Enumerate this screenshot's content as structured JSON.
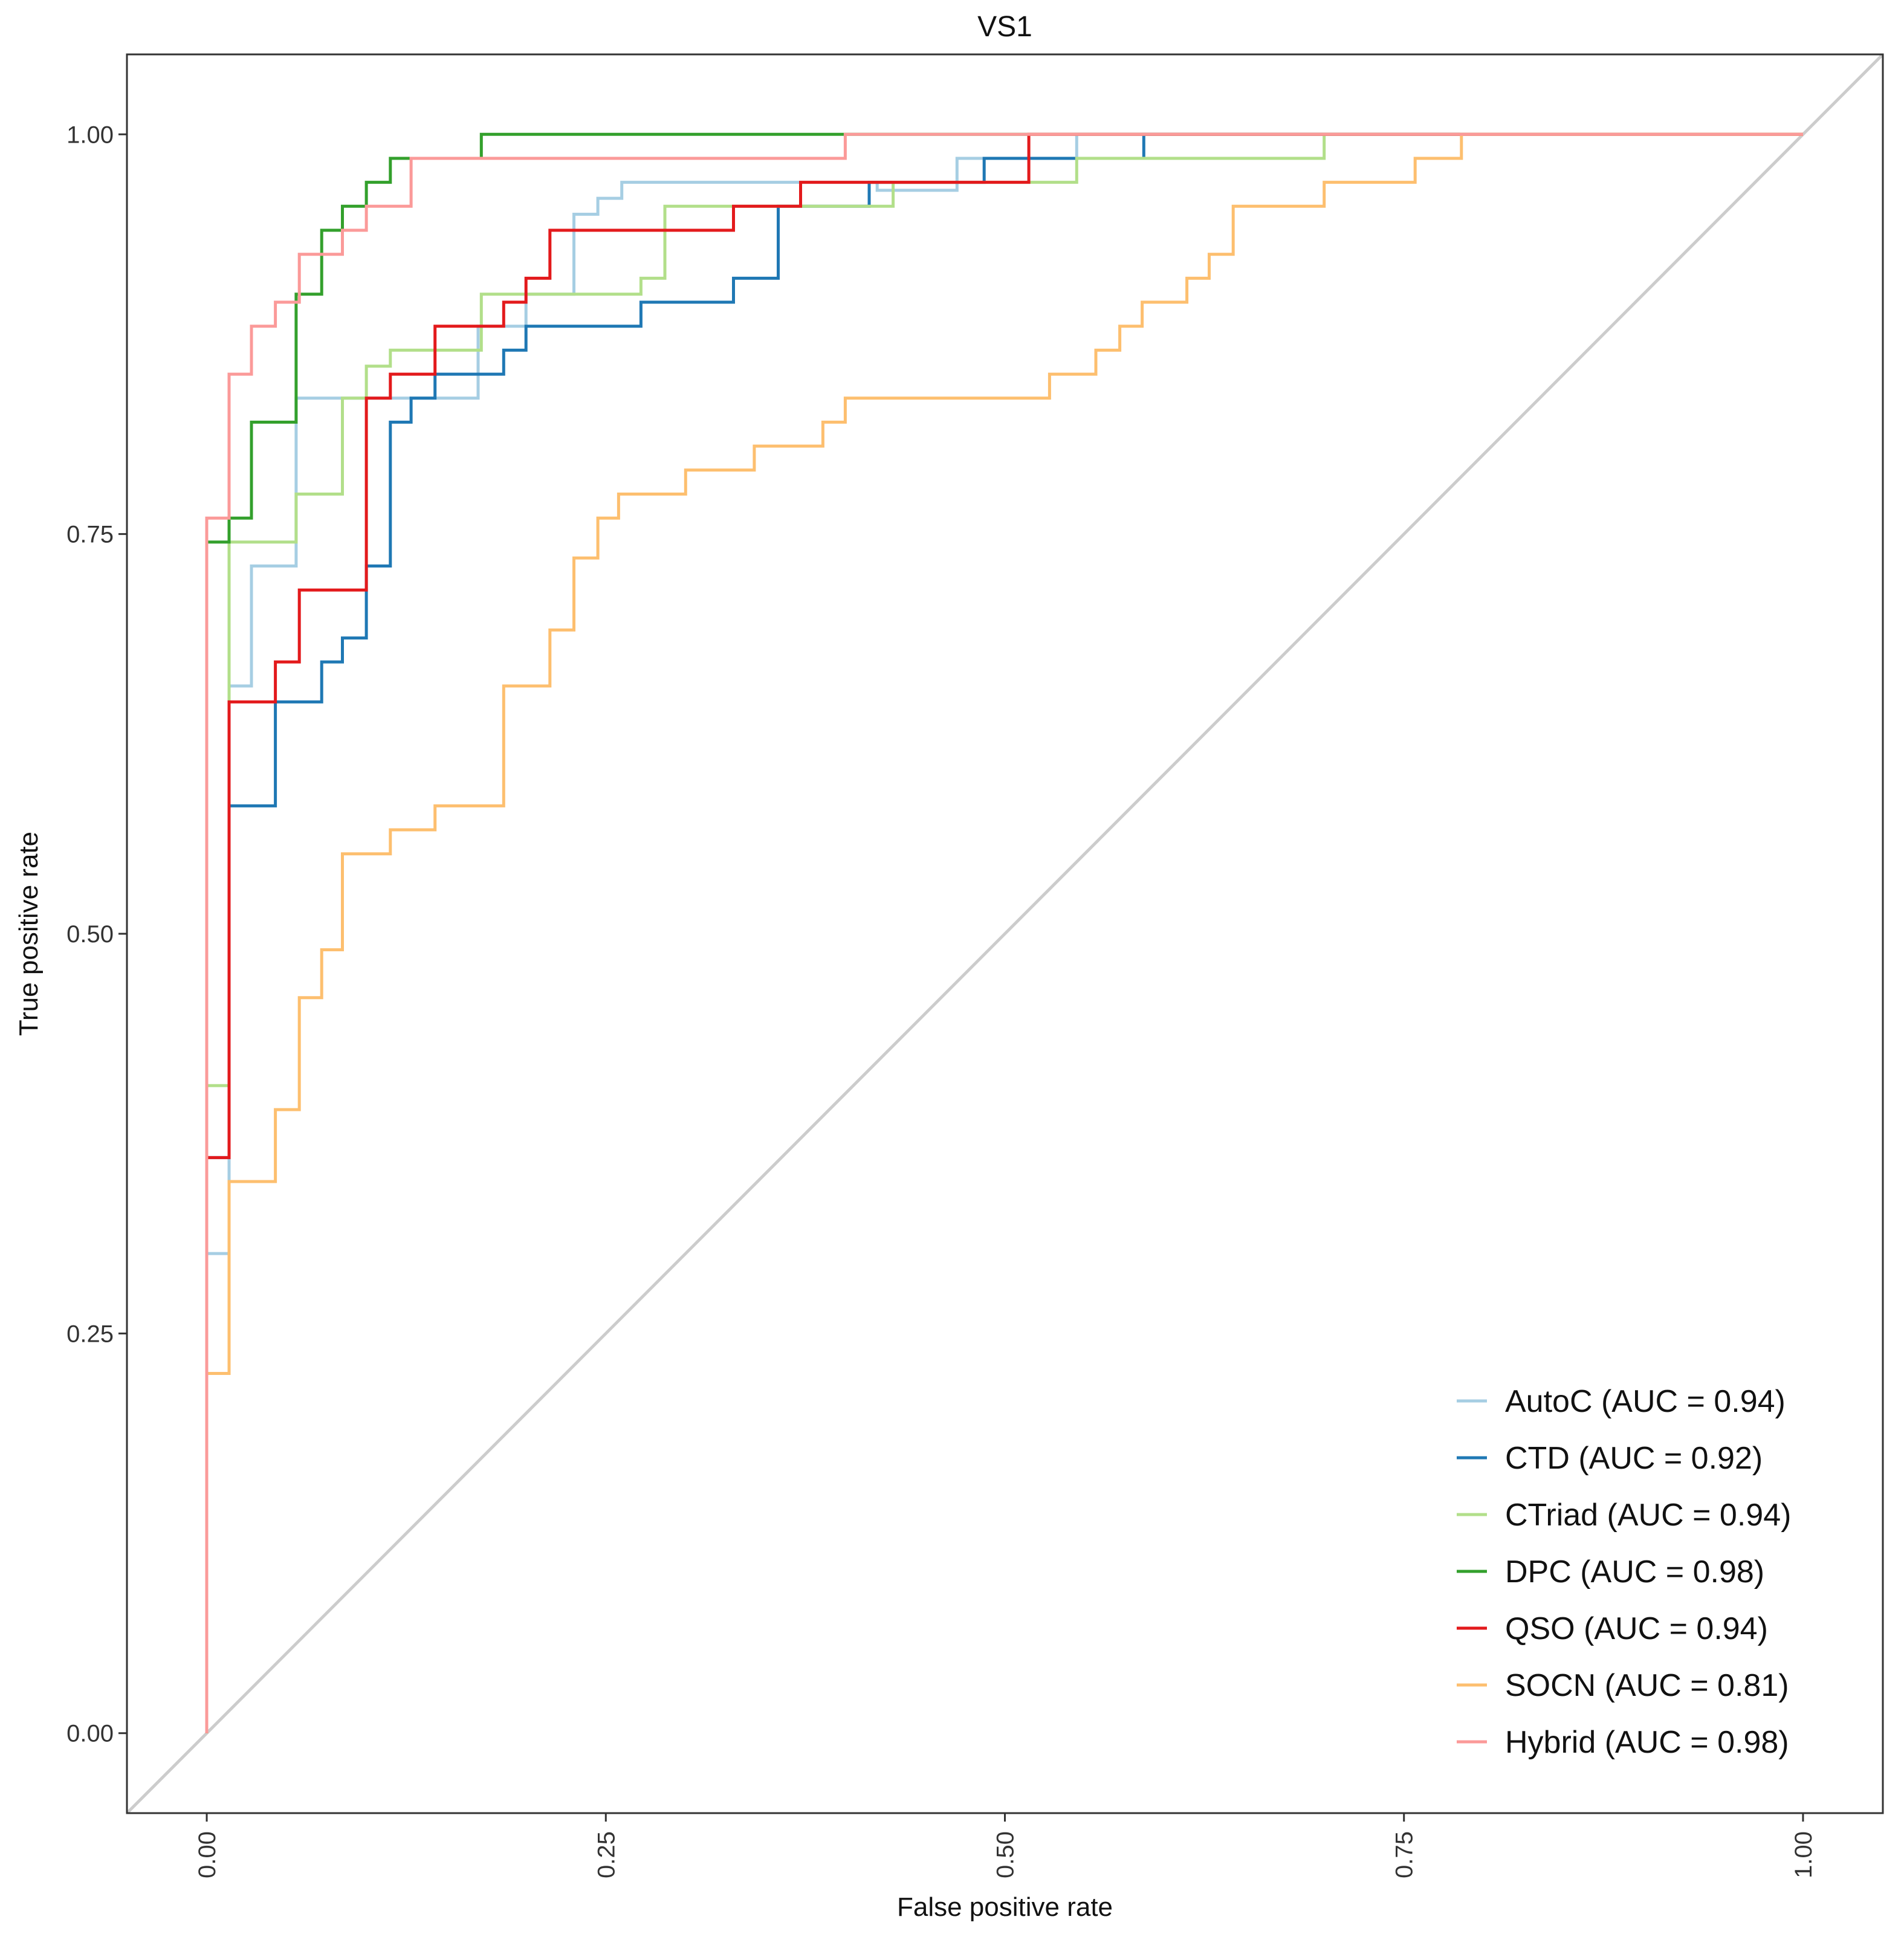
{
  "chart_data": {
    "type": "line",
    "title": "VS1",
    "xlabel": "False positive rate",
    "ylabel": "True positive rate",
    "xlim": [
      -0.05,
      1.05
    ],
    "ylim": [
      -0.05,
      1.05
    ],
    "x_ticks": [
      "0.00",
      "0.25",
      "0.50",
      "0.75",
      "1.00"
    ],
    "y_ticks": [
      "0.00",
      "0.25",
      "0.50",
      "0.75",
      "1.00"
    ],
    "x_tick_values": [
      0,
      0.25,
      0.5,
      0.75,
      1.0
    ],
    "y_tick_values": [
      0,
      0.25,
      0.5,
      0.75,
      1.0
    ],
    "legend_position": "bottom-right",
    "grid": false,
    "diagonal": {
      "x": [
        0,
        1
      ],
      "y": [
        0,
        1
      ],
      "color": "#cccccc"
    },
    "series": [
      {
        "name": "AutoC (AUC = 0.94)",
        "color": "#a6cee3",
        "points": [
          [
            0,
            0
          ],
          [
            0,
            0.3
          ],
          [
            0.014,
            0.3
          ],
          [
            0.014,
            0.655
          ],
          [
            0.028,
            0.655
          ],
          [
            0.028,
            0.73
          ],
          [
            0.056,
            0.73
          ],
          [
            0.056,
            0.835
          ],
          [
            0.17,
            0.835
          ],
          [
            0.17,
            0.88
          ],
          [
            0.2,
            0.88
          ],
          [
            0.2,
            0.9
          ],
          [
            0.23,
            0.9
          ],
          [
            0.23,
            0.95
          ],
          [
            0.245,
            0.95
          ],
          [
            0.245,
            0.96
          ],
          [
            0.26,
            0.96
          ],
          [
            0.26,
            0.97
          ],
          [
            0.42,
            0.97
          ],
          [
            0.42,
            0.965
          ],
          [
            0.47,
            0.965
          ],
          [
            0.47,
            0.985
          ],
          [
            0.545,
            0.985
          ],
          [
            0.545,
            1.0
          ],
          [
            1.0,
            1.0
          ]
        ]
      },
      {
        "name": "CTD (AUC = 0.92)",
        "color": "#1f78b4",
        "points": [
          [
            0,
            0
          ],
          [
            0,
            0.36
          ],
          [
            0.014,
            0.36
          ],
          [
            0.014,
            0.58
          ],
          [
            0.043,
            0.58
          ],
          [
            0.043,
            0.645
          ],
          [
            0.072,
            0.645
          ],
          [
            0.072,
            0.67
          ],
          [
            0.085,
            0.67
          ],
          [
            0.085,
            0.685
          ],
          [
            0.1,
            0.685
          ],
          [
            0.1,
            0.73
          ],
          [
            0.115,
            0.73
          ],
          [
            0.115,
            0.82
          ],
          [
            0.128,
            0.82
          ],
          [
            0.128,
            0.835
          ],
          [
            0.143,
            0.835
          ],
          [
            0.143,
            0.85
          ],
          [
            0.186,
            0.85
          ],
          [
            0.186,
            0.865
          ],
          [
            0.2,
            0.865
          ],
          [
            0.2,
            0.88
          ],
          [
            0.272,
            0.88
          ],
          [
            0.272,
            0.895
          ],
          [
            0.33,
            0.895
          ],
          [
            0.33,
            0.91
          ],
          [
            0.358,
            0.91
          ],
          [
            0.358,
            0.955
          ],
          [
            0.415,
            0.955
          ],
          [
            0.415,
            0.97
          ],
          [
            0.487,
            0.97
          ],
          [
            0.487,
            0.985
          ],
          [
            0.587,
            0.985
          ],
          [
            0.587,
            1.0
          ],
          [
            1.0,
            1.0
          ]
        ]
      },
      {
        "name": "CTriad (AUC = 0.94)",
        "color": "#b2df8a",
        "points": [
          [
            0,
            0
          ],
          [
            0,
            0.405
          ],
          [
            0.014,
            0.405
          ],
          [
            0.014,
            0.745
          ],
          [
            0.056,
            0.745
          ],
          [
            0.056,
            0.775
          ],
          [
            0.085,
            0.775
          ],
          [
            0.085,
            0.835
          ],
          [
            0.1,
            0.835
          ],
          [
            0.1,
            0.855
          ],
          [
            0.115,
            0.855
          ],
          [
            0.115,
            0.865
          ],
          [
            0.172,
            0.865
          ],
          [
            0.172,
            0.9
          ],
          [
            0.272,
            0.9
          ],
          [
            0.272,
            0.91
          ],
          [
            0.287,
            0.91
          ],
          [
            0.287,
            0.955
          ],
          [
            0.43,
            0.955
          ],
          [
            0.43,
            0.97
          ],
          [
            0.545,
            0.97
          ],
          [
            0.545,
            0.985
          ],
          [
            0.7,
            0.985
          ],
          [
            0.7,
            1.0
          ],
          [
            1.0,
            1.0
          ]
        ]
      },
      {
        "name": "DPC (AUC = 0.98)",
        "color": "#33a02c",
        "points": [
          [
            0,
            0
          ],
          [
            0,
            0.745
          ],
          [
            0.014,
            0.745
          ],
          [
            0.014,
            0.76
          ],
          [
            0.028,
            0.76
          ],
          [
            0.028,
            0.82
          ],
          [
            0.056,
            0.82
          ],
          [
            0.056,
            0.9
          ],
          [
            0.072,
            0.9
          ],
          [
            0.072,
            0.94
          ],
          [
            0.085,
            0.94
          ],
          [
            0.085,
            0.955
          ],
          [
            0.1,
            0.955
          ],
          [
            0.1,
            0.97
          ],
          [
            0.115,
            0.97
          ],
          [
            0.115,
            0.985
          ],
          [
            0.172,
            0.985
          ],
          [
            0.172,
            1.0
          ],
          [
            1.0,
            1.0
          ]
        ]
      },
      {
        "name": "QSO (AUC = 0.94)",
        "color": "#e31a1c",
        "points": [
          [
            0,
            0
          ],
          [
            0,
            0.225
          ],
          [
            0,
            0.36
          ],
          [
            0.014,
            0.36
          ],
          [
            0.014,
            0.645
          ],
          [
            0.043,
            0.645
          ],
          [
            0.043,
            0.67
          ],
          [
            0.058,
            0.67
          ],
          [
            0.058,
            0.715
          ],
          [
            0.1,
            0.715
          ],
          [
            0.1,
            0.835
          ],
          [
            0.115,
            0.835
          ],
          [
            0.115,
            0.85
          ],
          [
            0.143,
            0.85
          ],
          [
            0.143,
            0.88
          ],
          [
            0.186,
            0.88
          ],
          [
            0.186,
            0.895
          ],
          [
            0.2,
            0.895
          ],
          [
            0.2,
            0.91
          ],
          [
            0.215,
            0.91
          ],
          [
            0.215,
            0.94
          ],
          [
            0.33,
            0.94
          ],
          [
            0.33,
            0.955
          ],
          [
            0.372,
            0.955
          ],
          [
            0.372,
            0.97
          ],
          [
            0.515,
            0.97
          ],
          [
            0.515,
            1.0
          ],
          [
            1.0,
            1.0
          ]
        ]
      },
      {
        "name": "SOCN (AUC = 0.81)",
        "color": "#fdbf6f",
        "points": [
          [
            0,
            0
          ],
          [
            0,
            0.225
          ],
          [
            0.014,
            0.225
          ],
          [
            0.014,
            0.345
          ],
          [
            0.043,
            0.345
          ],
          [
            0.043,
            0.39
          ],
          [
            0.058,
            0.39
          ],
          [
            0.058,
            0.46
          ],
          [
            0.072,
            0.46
          ],
          [
            0.072,
            0.49
          ],
          [
            0.085,
            0.49
          ],
          [
            0.085,
            0.55
          ],
          [
            0.115,
            0.55
          ],
          [
            0.115,
            0.565
          ],
          [
            0.143,
            0.565
          ],
          [
            0.143,
            0.58
          ],
          [
            0.186,
            0.58
          ],
          [
            0.186,
            0.655
          ],
          [
            0.215,
            0.655
          ],
          [
            0.215,
            0.69
          ],
          [
            0.23,
            0.69
          ],
          [
            0.23,
            0.735
          ],
          [
            0.245,
            0.735
          ],
          [
            0.245,
            0.76
          ],
          [
            0.258,
            0.76
          ],
          [
            0.258,
            0.775
          ],
          [
            0.3,
            0.775
          ],
          [
            0.3,
            0.79
          ],
          [
            0.343,
            0.79
          ],
          [
            0.343,
            0.805
          ],
          [
            0.386,
            0.805
          ],
          [
            0.386,
            0.82
          ],
          [
            0.4,
            0.82
          ],
          [
            0.4,
            0.835
          ],
          [
            0.528,
            0.835
          ],
          [
            0.528,
            0.85
          ],
          [
            0.557,
            0.85
          ],
          [
            0.557,
            0.865
          ],
          [
            0.572,
            0.865
          ],
          [
            0.572,
            0.88
          ],
          [
            0.586,
            0.88
          ],
          [
            0.586,
            0.895
          ],
          [
            0.614,
            0.895
          ],
          [
            0.614,
            0.91
          ],
          [
            0.628,
            0.91
          ],
          [
            0.628,
            0.925
          ],
          [
            0.643,
            0.925
          ],
          [
            0.643,
            0.955
          ],
          [
            0.7,
            0.955
          ],
          [
            0.7,
            0.97
          ],
          [
            0.757,
            0.97
          ],
          [
            0.757,
            0.985
          ],
          [
            0.786,
            0.985
          ],
          [
            0.786,
            1.0
          ],
          [
            1.0,
            1.0
          ]
        ]
      },
      {
        "name": "Hybrid (AUC = 0.98)",
        "color": "#fb9a99",
        "points": [
          [
            0,
            0
          ],
          [
            0,
            0.76
          ],
          [
            0.014,
            0.76
          ],
          [
            0.014,
            0.85
          ],
          [
            0.028,
            0.85
          ],
          [
            0.028,
            0.88
          ],
          [
            0.043,
            0.88
          ],
          [
            0.043,
            0.895
          ],
          [
            0.058,
            0.895
          ],
          [
            0.058,
            0.925
          ],
          [
            0.085,
            0.925
          ],
          [
            0.085,
            0.94
          ],
          [
            0.1,
            0.94
          ],
          [
            0.1,
            0.955
          ],
          [
            0.128,
            0.955
          ],
          [
            0.128,
            0.985
          ],
          [
            0.4,
            0.985
          ],
          [
            0.4,
            1.0
          ],
          [
            1.0,
            1.0
          ]
        ]
      }
    ]
  }
}
